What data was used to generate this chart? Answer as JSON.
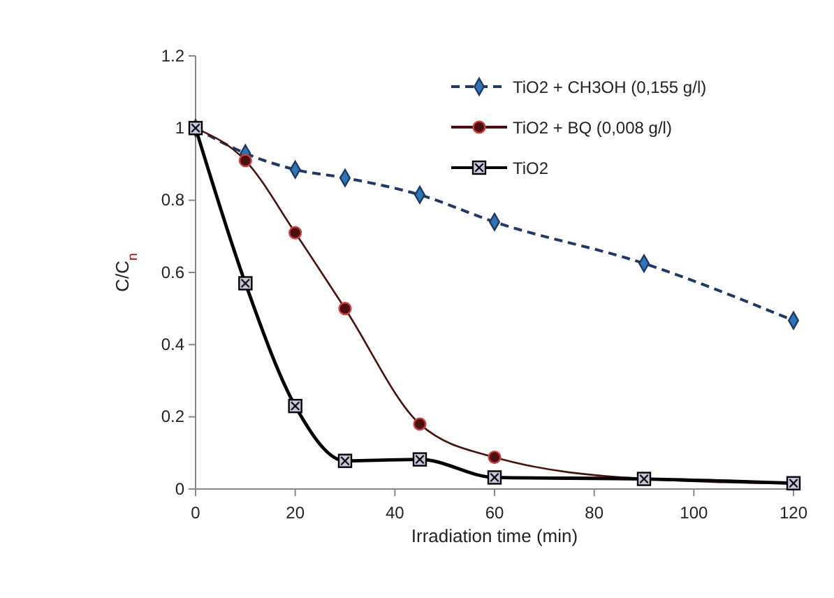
{
  "chart_data": {
    "type": "line",
    "xlabel": "Irradiation time (min)",
    "ylabel": "C/C$_{n}$",
    "x": [
      0,
      10,
      20,
      30,
      45,
      60,
      90,
      120
    ],
    "xlim": [
      0,
      120
    ],
    "xticks": [
      0,
      20,
      40,
      60,
      80,
      100,
      120
    ],
    "ylim": [
      0,
      1.2
    ],
    "yticks": [
      0,
      0.2,
      0.4,
      0.6,
      0.8,
      1,
      1.2
    ],
    "grid": false,
    "legend": "top right",
    "series": [
      {
        "name": "TiO2 + CH3OH (0,155 g/l)",
        "color": "#1f3864",
        "marker": "diamond",
        "line_style": "dashed",
        "values": [
          1,
          0.93,
          0.885,
          0.862,
          0.815,
          0.74,
          0.625,
          0.467
        ]
      },
      {
        "name": "TiO2 + BQ (0,008 g/l)",
        "color": "#4a1010",
        "marker": "circle",
        "line_style": "solid",
        "values": [
          1,
          0.91,
          0.71,
          0.5,
          0.18,
          0.088,
          0.028,
          0.015
        ]
      },
      {
        "name": "TiO2",
        "color": "#000000",
        "marker": "square",
        "line_style": "solid",
        "values": [
          1,
          0.57,
          0.23,
          0.078,
          0.082,
          0.032,
          0.028,
          0.016
        ]
      }
    ]
  }
}
